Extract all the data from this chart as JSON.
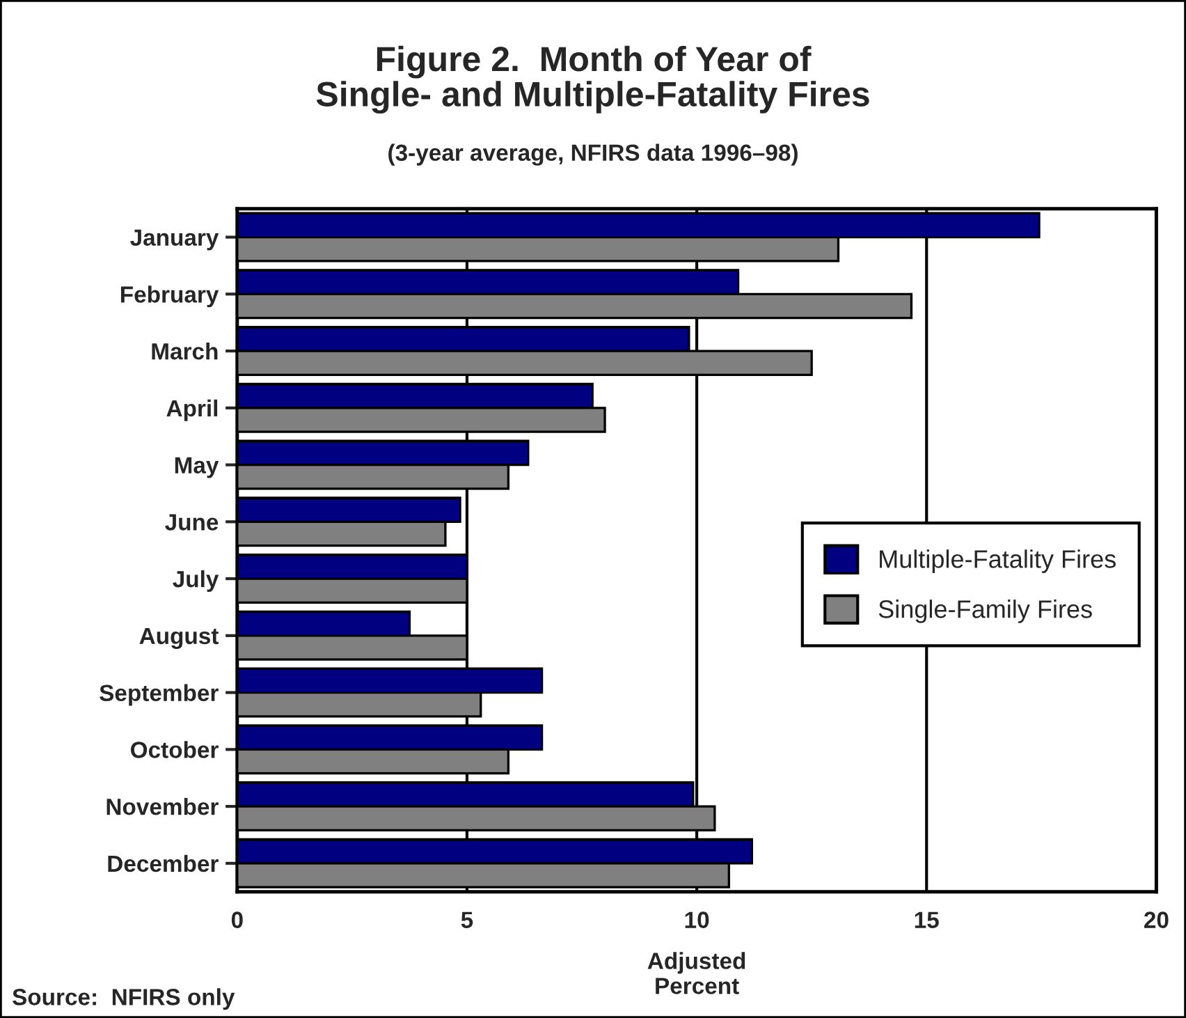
{
  "chart_data": {
    "type": "bar",
    "orientation": "horizontal",
    "title": "Figure 2.  Month of Year of\nSingle- and Multiple-Fatality Fires",
    "subtitle": "(3-year average, NFIRS data 1996–98)",
    "xlabel": "Adjusted\nPercent",
    "categories": [
      "January",
      "February",
      "March",
      "April",
      "May",
      "June",
      "July",
      "August",
      "September",
      "October",
      "November",
      "December"
    ],
    "series": [
      {
        "name": "Multiple-Fatality Fires",
        "color": "#000080",
        "values": [
          17.45,
          10.9,
          9.83,
          7.73,
          6.33,
          4.85,
          5.0,
          3.75,
          6.63,
          6.63,
          9.92,
          11.2
        ]
      },
      {
        "name": "Single-Family Fires",
        "color": "#808080",
        "values": [
          13.08,
          14.67,
          12.5,
          8.0,
          5.9,
          4.53,
          5.0,
          5.0,
          5.3,
          5.9,
          10.39,
          10.7
        ]
      }
    ],
    "xlim": [
      0,
      20
    ],
    "xticks": [
      0,
      5,
      10,
      15,
      20
    ],
    "grid": "x",
    "legend": "right",
    "annotations": [
      "Source:  NFIRS only"
    ]
  }
}
